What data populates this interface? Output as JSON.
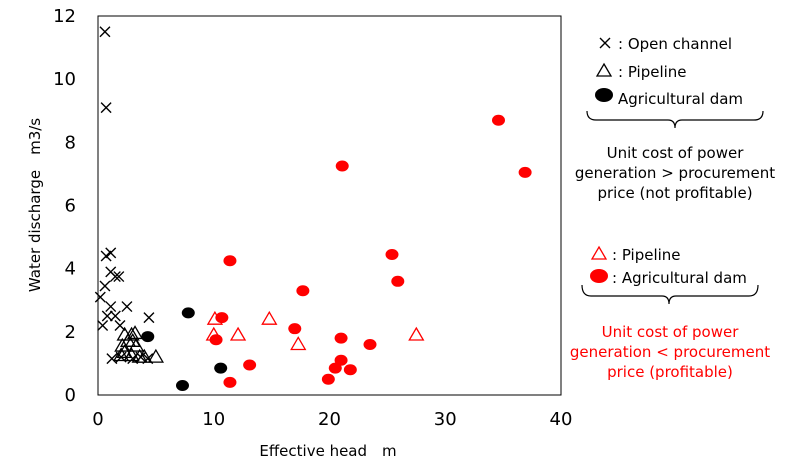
{
  "chart_data": {
    "type": "scatter",
    "xlabel": "Effective head　m",
    "ylabel": "Water discharge　m3/s",
    "xlim": [
      0,
      40
    ],
    "ylim": [
      0,
      12
    ],
    "xticks": [
      "0",
      "10",
      "20",
      "30",
      "40"
    ],
    "yticks": [
      "0",
      "2",
      "4",
      "6",
      "8",
      "10",
      "12"
    ],
    "series": [
      {
        "name": ": Open channel",
        "marker": "x",
        "color": "#000000",
        "group": "not_profitable",
        "points": [
          [
            0.6,
            11.5
          ],
          [
            0.7,
            9.1
          ],
          [
            0.7,
            4.4
          ],
          [
            1.1,
            4.5
          ],
          [
            1.1,
            3.9
          ],
          [
            1.5,
            3.75
          ],
          [
            1.8,
            3.75
          ],
          [
            0.6,
            3.45
          ],
          [
            0.2,
            3.1
          ],
          [
            1.1,
            2.8
          ],
          [
            2.5,
            2.8
          ],
          [
            0.8,
            2.5
          ],
          [
            1.5,
            2.5
          ],
          [
            4.4,
            2.45
          ],
          [
            0.4,
            2.2
          ],
          [
            1.9,
            2.2
          ],
          [
            1.2,
            1.15
          ],
          [
            2.0,
            1.2
          ],
          [
            3.0,
            1.15
          ],
          [
            4.3,
            1.15
          ],
          [
            3.7,
            1.2
          ]
        ]
      },
      {
        "name": ": Pipeline",
        "marker": "triangle-open",
        "color": "#000000",
        "group": "not_profitable",
        "points": [
          [
            2.3,
            1.9
          ],
          [
            2.9,
            1.9
          ],
          [
            3.2,
            1.95
          ],
          [
            2.6,
            1.7
          ],
          [
            3.0,
            1.7
          ],
          [
            3.3,
            1.55
          ],
          [
            2.1,
            1.55
          ],
          [
            2.3,
            1.35
          ],
          [
            2.9,
            1.25
          ],
          [
            2.0,
            1.25
          ],
          [
            3.6,
            1.2
          ],
          [
            4.0,
            1.2
          ],
          [
            5.0,
            1.2
          ]
        ]
      },
      {
        "name": " Agricultural dam",
        "marker": "circle-filled",
        "color": "#000000",
        "group": "not_profitable",
        "points": [
          [
            4.3,
            1.85
          ],
          [
            7.8,
            2.6
          ],
          [
            7.3,
            0.3
          ],
          [
            10.6,
            0.85
          ]
        ]
      },
      {
        "name": ": Pipeline",
        "marker": "triangle-open",
        "color": "#ff0000",
        "group": "profitable",
        "points": [
          [
            10.1,
            2.4
          ],
          [
            10.0,
            1.9
          ],
          [
            12.1,
            1.9
          ],
          [
            14.8,
            2.4
          ],
          [
            17.3,
            1.6
          ],
          [
            27.5,
            1.9
          ]
        ]
      },
      {
        "name": ": Agricultural dam",
        "marker": "circle-filled",
        "color": "#ff0000",
        "group": "profitable",
        "points": [
          [
            34.6,
            8.7
          ],
          [
            36.9,
            7.05
          ],
          [
            21.1,
            7.25
          ],
          [
            11.4,
            4.25
          ],
          [
            25.4,
            4.45
          ],
          [
            25.9,
            3.6
          ],
          [
            17.7,
            3.3
          ],
          [
            10.7,
            2.45
          ],
          [
            17.0,
            2.1
          ],
          [
            10.2,
            1.75
          ],
          [
            21.0,
            1.8
          ],
          [
            23.5,
            1.6
          ],
          [
            13.1,
            0.95
          ],
          [
            21.0,
            1.1
          ],
          [
            20.5,
            0.85
          ],
          [
            21.8,
            0.8
          ],
          [
            19.9,
            0.5
          ],
          [
            11.4,
            0.4
          ]
        ]
      }
    ],
    "legend_black": {
      "items": [
        {
          "marker": "x",
          "label": ": Open channel"
        },
        {
          "marker": "triangle-open",
          "label": ": Pipeline"
        },
        {
          "marker": "circle-filled",
          "label": " Agricultural dam"
        }
      ],
      "note": [
        "Unit cost of power",
        "generation > procurement",
        "price (not profitable)"
      ]
    },
    "legend_red": {
      "items": [
        {
          "marker": "triangle-open",
          "label": ": Pipeline"
        },
        {
          "marker": "circle-filled",
          "label": ": Agricultural dam"
        }
      ],
      "note": [
        "Unit cost of power",
        "generation < procurement",
        "price (profitable)"
      ]
    }
  }
}
